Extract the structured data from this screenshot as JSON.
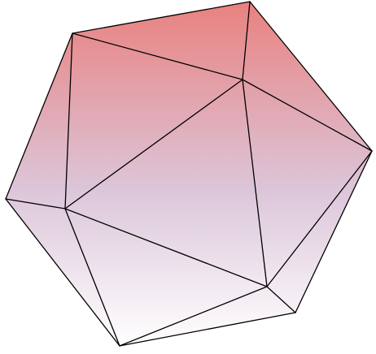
{
  "diagram": {
    "shape": "icosahedron",
    "fill": {
      "top_color": "#e9817f",
      "mid_color": "#dcc6da",
      "bottom_color": "#ffffff"
    },
    "edge_color": "#000000"
  }
}
